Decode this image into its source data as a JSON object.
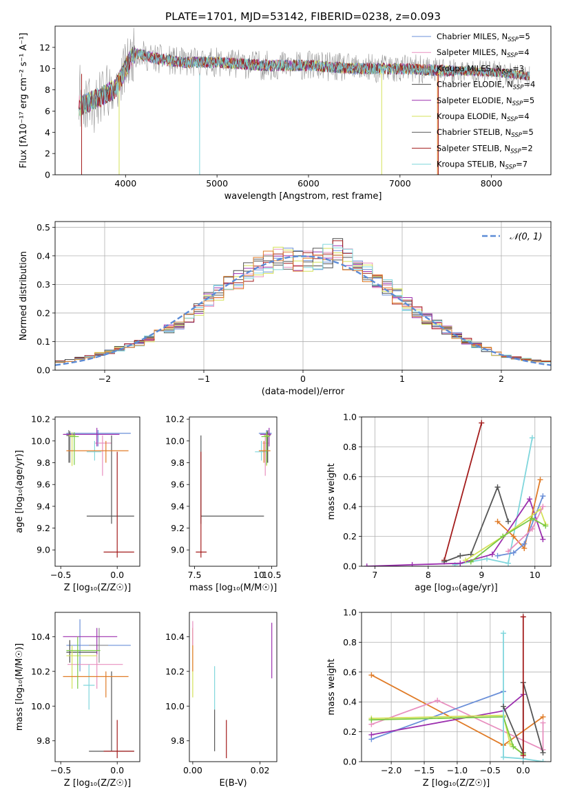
{
  "figure": {
    "title": "PLATE=1701, MJD=53142, FIBERID=0238, z=0.093"
  },
  "colors": {
    "Chabrier MILES": "#6a8fd8",
    "Salpeter MILES": "#e88fbf",
    "Kroupa MILES": "#8c8c8c",
    "Chabrier ELODIE": "#4a4a4a",
    "Salpeter ELODIE": "#9b2fae",
    "Kroupa ELODIE": "#d4e157",
    "Chabrier STELIB": "#555555",
    "Salpeter STELIB": "#a31b1b",
    "Kroupa STELIB": "#7fd6dc",
    "orange": "#e07b27",
    "green": "#7ac943",
    "gaussian": "#5b8bd6"
  },
  "chart_data": [
    {
      "panel": "spectrum",
      "type": "line",
      "xlabel": "wavelength [Angstrom, rest frame]",
      "ylabel": "Flux [fλ10⁻¹⁷ erg cm⁻² s⁻¹ A⁻¹]",
      "xlim": [
        3230,
        8650
      ],
      "ylim": [
        0,
        14
      ],
      "xticks": [
        4000,
        5000,
        6000,
        7000,
        8000
      ],
      "yticks": [
        0,
        2,
        4,
        6,
        8,
        10,
        12
      ],
      "grid": false,
      "legend": "top-right",
      "legend_entries": [
        {
          "label": "Chabrier MILES, N",
          "sub": "SSP",
          "tail": "=5"
        },
        {
          "label": "Salpeter MILES, N",
          "sub": "SSP",
          "tail": "=4"
        },
        {
          "label": "Kroupa MILES, N",
          "sub": "SSP",
          "tail": "=3"
        },
        {
          "label": "Chabrier ELODIE, N",
          "sub": "SSP",
          "tail": "=4"
        },
        {
          "label": "Salpeter ELODIE, N",
          "sub": "SSP",
          "tail": "=5"
        },
        {
          "label": "Kroupa ELODIE, N",
          "sub": "SSP",
          "tail": "=4"
        },
        {
          "label": "Chabrier STELIB, N",
          "sub": "SSP",
          "tail": "=5"
        },
        {
          "label": "Salpeter STELIB, N",
          "sub": "SSP",
          "tail": "=2"
        },
        {
          "label": "Kroupa STELIB, N",
          "sub": "SSP",
          "tail": "=7"
        }
      ],
      "continuum": {
        "x": [
          3500,
          3700,
          3900,
          4000,
          4100,
          4300,
          4600,
          5000,
          5500,
          6000,
          6500,
          7000,
          7500,
          8000,
          8400
        ],
        "y": [
          6.5,
          7.2,
          8.2,
          10.0,
          11.5,
          11.0,
          10.6,
          10.6,
          10.3,
          10.3,
          10.0,
          10.0,
          9.8,
          9.7,
          9.3
        ]
      }
    },
    {
      "panel": "residuals",
      "type": "line",
      "xlabel": "(data-model)/error",
      "ylabel": "Normed distribution",
      "xlim": [
        -2.5,
        2.5
      ],
      "ylim": [
        0,
        0.52
      ],
      "xticks": [
        -2,
        -1,
        0,
        1,
        2
      ],
      "yticks": [
        0.0,
        0.1,
        0.2,
        0.3,
        0.4,
        0.5
      ],
      "grid": true,
      "legend": "top-right",
      "legend_entries": [
        "𝒩(0, 1)"
      ],
      "histogram_profile": {
        "x": [
          -2.4,
          -2.0,
          -1.6,
          -1.2,
          -0.8,
          -0.4,
          -0.2,
          0.0,
          0.2,
          0.35,
          0.5,
          0.8,
          1.2,
          1.6,
          2.0,
          2.4
        ],
        "y": [
          0.03,
          0.06,
          0.1,
          0.17,
          0.29,
          0.37,
          0.4,
          0.38,
          0.39,
          0.42,
          0.38,
          0.3,
          0.19,
          0.11,
          0.05,
          0.03
        ]
      }
    },
    {
      "panel": "age_vs_Z",
      "type": "scatter",
      "xlabel": "Z [log₁₀(Z/Z☉)]",
      "ylabel": "age [log₁₀(age/yr)]",
      "xlim": [
        -0.55,
        0.2
      ],
      "ylim": [
        8.85,
        10.22
      ],
      "xticks": [
        -0.5,
        0.0
      ],
      "yticks": [
        9.0,
        9.2,
        9.4,
        9.6,
        9.8,
        10.0,
        10.2
      ],
      "points": [
        {
          "s": "Chabrier MILES",
          "x": -0.17,
          "y": 10.07,
          "xe": [
            -0.45,
            0.12
          ],
          "ye": [
            9.95,
            10.1
          ]
        },
        {
          "s": "Salpeter MILES",
          "x": -0.13,
          "y": 9.98,
          "xe": [
            -0.2,
            -0.05
          ],
          "ye": [
            9.68,
            10.05
          ]
        },
        {
          "s": "Kroupa MILES",
          "x": -0.43,
          "y": 10.06,
          "xe": [
            -0.47,
            -0.4
          ],
          "ye": [
            9.8,
            10.1
          ]
        },
        {
          "s": "Chabrier ELODIE",
          "x": -0.42,
          "y": 10.05,
          "xe": [
            -0.45,
            -0.38
          ],
          "ye": [
            9.8,
            10.09
          ]
        },
        {
          "s": "Salpeter ELODIE",
          "x": -0.18,
          "y": 10.06,
          "xe": [
            -0.48,
            0.02
          ],
          "ye": [
            9.95,
            10.12
          ]
        },
        {
          "s": "Kroupa ELODIE",
          "x": -0.4,
          "y": 10.05,
          "xe": [
            -0.43,
            -0.37
          ],
          "ye": [
            9.77,
            10.08
          ]
        },
        {
          "s": "Chabrier STELIB",
          "x": -0.05,
          "y": 9.31,
          "xe": [
            -0.27,
            0.15
          ],
          "ye": [
            9.24,
            10.05
          ]
        },
        {
          "s": "Salpeter STELIB",
          "x": 0.0,
          "y": 8.98,
          "xe": [
            -0.12,
            0.15
          ],
          "ye": [
            8.93,
            9.9
          ]
        },
        {
          "s": "Kroupa STELIB",
          "x": -0.2,
          "y": 9.9,
          "xe": [
            -0.27,
            -0.14
          ],
          "ye": [
            9.82,
            10.0
          ]
        },
        {
          "s": "orange",
          "x": -0.1,
          "y": 9.91,
          "xe": [
            -0.45,
            0.1
          ],
          "ye": [
            9.8,
            10.0
          ]
        },
        {
          "s": "green",
          "x": -0.38,
          "y": 10.04,
          "xe": [
            -0.42,
            -0.34
          ],
          "ye": [
            9.78,
            10.08
          ]
        }
      ]
    },
    {
      "panel": "age_vs_mass",
      "type": "scatter",
      "xlabel": "mass [log₁₀(M/M☉)]",
      "ylabel": "",
      "xlim": [
        7.3,
        10.7
      ],
      "ylim": [
        8.85,
        10.22
      ],
      "xticks": [
        7.5,
        10.0,
        10.5
      ],
      "yticks": [
        9.0,
        9.2,
        9.4,
        9.6,
        9.8,
        10.0,
        10.2
      ],
      "points": [
        {
          "s": "Chabrier MILES",
          "x": 10.3,
          "y": 10.07,
          "xe": [
            10.0,
            10.5
          ],
          "ye": [
            9.95,
            10.1
          ]
        },
        {
          "s": "Salpeter MILES",
          "x": 10.25,
          "y": 9.98,
          "xe": [
            10.15,
            10.4
          ],
          "ye": [
            9.68,
            10.05
          ]
        },
        {
          "s": "Kroupa MILES",
          "x": 10.35,
          "y": 10.06,
          "xe": [
            10.25,
            10.45
          ],
          "ye": [
            9.8,
            10.1
          ]
        },
        {
          "s": "Chabrier ELODIE",
          "x": 10.33,
          "y": 10.05,
          "xe": [
            10.2,
            10.45
          ],
          "ye": [
            9.8,
            10.09
          ]
        },
        {
          "s": "Salpeter ELODIE",
          "x": 10.4,
          "y": 10.06,
          "xe": [
            10.05,
            10.48
          ],
          "ye": [
            9.95,
            10.12
          ]
        },
        {
          "s": "Kroupa ELODIE",
          "x": 10.3,
          "y": 10.05,
          "xe": [
            10.2,
            10.4
          ],
          "ye": [
            9.77,
            10.08
          ]
        },
        {
          "s": "Chabrier STELIB",
          "x": 7.75,
          "y": 9.31,
          "xe": [
            7.75,
            10.2
          ],
          "ye": [
            9.24,
            10.05
          ]
        },
        {
          "s": "Salpeter STELIB",
          "x": 7.75,
          "y": 8.98,
          "xe": [
            7.55,
            7.97
          ],
          "ye": [
            8.93,
            9.9
          ]
        },
        {
          "s": "Kroupa STELIB",
          "x": 10.1,
          "y": 9.9,
          "xe": [
            9.85,
            10.3
          ],
          "ye": [
            9.82,
            10.0
          ]
        },
        {
          "s": "orange",
          "x": 10.2,
          "y": 9.91,
          "xe": [
            10.0,
            10.45
          ],
          "ye": [
            9.8,
            10.0
          ]
        },
        {
          "s": "green",
          "x": 10.3,
          "y": 10.04,
          "xe": [
            10.1,
            10.42
          ],
          "ye": [
            9.78,
            10.08
          ]
        }
      ]
    },
    {
      "panel": "weight_vs_age",
      "type": "line",
      "xlabel": "age  [log₁₀(age/yr)]",
      "ylabel": "mass weight",
      "xlim": [
        6.75,
        10.3
      ],
      "ylim": [
        0,
        1.0
      ],
      "xticks": [
        7,
        8,
        9,
        10
      ],
      "yticks": [
        0.0,
        0.2,
        0.4,
        0.6,
        0.8,
        1.0
      ],
      "grid": true,
      "series": [
        {
          "s": "Salpeter STELIB",
          "x": [
            8.3,
            9.0
          ],
          "y": [
            0.04,
            0.96
          ]
        },
        {
          "s": "Chabrier STELIB",
          "x": [
            8.3,
            8.6,
            8.8,
            9.3,
            9.5
          ],
          "y": [
            0.03,
            0.07,
            0.08,
            0.53,
            0.3
          ]
        },
        {
          "s": "Kroupa STELIB",
          "x": [
            8.5,
            8.8,
            9.1,
            9.5,
            9.95
          ],
          "y": [
            0.01,
            0.03,
            0.05,
            0.02,
            0.86
          ]
        },
        {
          "s": "Salpeter ELODIE",
          "x": [
            6.85,
            7.7,
            8.6,
            9.2,
            9.9,
            10.15
          ],
          "y": [
            0.0,
            0.01,
            0.02,
            0.08,
            0.45,
            0.18
          ]
        },
        {
          "s": "orange",
          "x": [
            9.3,
            9.6,
            9.8,
            10.1
          ],
          "y": [
            0.3,
            0.2,
            0.12,
            0.58
          ]
        },
        {
          "s": "Chabrier MILES",
          "x": [
            9.3,
            9.6,
            9.8,
            10.15
          ],
          "y": [
            0.07,
            0.09,
            0.15,
            0.47
          ]
        },
        {
          "s": "Kroupa ELODIE",
          "x": [
            8.7,
            9.4,
            10.1,
            10.2
          ],
          "y": [
            0.04,
            0.2,
            0.38,
            0.28
          ]
        },
        {
          "s": "Salpeter MILES",
          "x": [
            9.5,
            9.95,
            10.15
          ],
          "y": [
            0.1,
            0.25,
            0.4
          ]
        },
        {
          "s": "green",
          "x": [
            8.8,
            9.4,
            9.95,
            10.2
          ],
          "y": [
            0.03,
            0.2,
            0.32,
            0.27
          ]
        }
      ]
    },
    {
      "panel": "mass_vs_Z",
      "type": "scatter",
      "xlabel": "Z [log₁₀(Z/Z☉)]",
      "ylabel": "mass [log₁₀(M/M☉)]",
      "xlim": [
        -0.55,
        0.2
      ],
      "ylim": [
        9.68,
        10.54
      ],
      "xticks": [
        -0.5,
        0.0
      ],
      "yticks": [
        9.8,
        10.0,
        10.2,
        10.4
      ],
      "points": [
        {
          "s": "Chabrier MILES",
          "x": -0.33,
          "y": 10.35,
          "xe": [
            -0.45,
            0.12
          ],
          "ye": [
            10.2,
            10.5
          ]
        },
        {
          "s": "Salpeter MILES",
          "x": -0.18,
          "y": 10.24,
          "xe": [
            -0.44,
            0.05
          ],
          "ye": [
            10.1,
            10.35
          ]
        },
        {
          "s": "Kroupa MILES",
          "x": -0.16,
          "y": 10.35,
          "xe": [
            -0.25,
            -0.08
          ],
          "ye": [
            10.25,
            10.45
          ]
        },
        {
          "s": "Chabrier ELODIE",
          "x": -0.42,
          "y": 10.31,
          "xe": [
            -0.45,
            -0.18
          ],
          "ye": [
            10.25,
            10.38
          ]
        },
        {
          "s": "Salpeter ELODIE",
          "x": -0.18,
          "y": 10.4,
          "xe": [
            -0.48,
            0.0
          ],
          "ye": [
            10.3,
            10.45
          ]
        },
        {
          "s": "Kroupa ELODIE",
          "x": -0.4,
          "y": 10.29,
          "xe": [
            -0.45,
            -0.18
          ],
          "ye": [
            10.1,
            10.35
          ]
        },
        {
          "s": "Chabrier STELIB",
          "x": -0.05,
          "y": 9.74,
          "xe": [
            -0.25,
            0.15
          ],
          "ye": [
            9.74,
            10.2
          ]
        },
        {
          "s": "Salpeter STELIB",
          "x": 0.0,
          "y": 9.74,
          "xe": [
            -0.12,
            0.15
          ],
          "ye": [
            9.7,
            9.92
          ]
        },
        {
          "s": "Kroupa STELIB",
          "x": -0.25,
          "y": 10.12,
          "xe": [
            -0.3,
            -0.2
          ],
          "ye": [
            9.98,
            10.24
          ]
        },
        {
          "s": "orange",
          "x": -0.1,
          "y": 10.17,
          "xe": [
            -0.48,
            0.1
          ],
          "ye": [
            10.05,
            10.2
          ]
        },
        {
          "s": "green",
          "x": -0.35,
          "y": 10.32,
          "xe": [
            -0.45,
            -0.15
          ],
          "ye": [
            10.1,
            10.4
          ]
        }
      ]
    },
    {
      "panel": "mass_vs_EBV",
      "type": "scatter",
      "xlabel": "E(B-V)",
      "ylabel": "",
      "xlim": [
        -0.001,
        0.025
      ],
      "ylim": [
        9.68,
        10.54
      ],
      "xticks": [
        0.0,
        0.02
      ],
      "xtick_labels": [
        "0.00",
        "0.02"
      ],
      "yticks": [
        9.8,
        10.0,
        10.2,
        10.4
      ],
      "points": [
        {
          "s": "Kroupa ELODIE",
          "x": 0.0,
          "y": 10.3,
          "ye": [
            10.05,
            10.45
          ]
        },
        {
          "s": "orange",
          "x": 0.0,
          "y": 10.35,
          "ye": [
            10.2,
            10.45
          ]
        },
        {
          "s": "Salpeter MILES",
          "x": 0.0,
          "y": 10.42,
          "ye": [
            10.35,
            10.49
          ]
        },
        {
          "s": "Kroupa STELIB",
          "x": 0.0065,
          "y": 10.1,
          "ye": [
            9.98,
            10.23
          ]
        },
        {
          "s": "Chabrier STELIB",
          "x": 0.0065,
          "y": 9.85,
          "ye": [
            9.74,
            9.98
          ]
        },
        {
          "s": "Salpeter STELIB",
          "x": 0.01,
          "y": 9.8,
          "ye": [
            9.7,
            9.92
          ]
        },
        {
          "s": "Salpeter ELODIE",
          "x": 0.0235,
          "y": 10.35,
          "ye": [
            10.16,
            10.48
          ]
        }
      ]
    },
    {
      "panel": "weight_vs_Z",
      "type": "line",
      "xlabel": "Z [log₁₀(Z/Z☉)]",
      "ylabel": "mass weight",
      "xlim": [
        -2.45,
        0.42
      ],
      "ylim": [
        0,
        1.0
      ],
      "xticks": [
        -2.0,
        -1.5,
        -1.0,
        -0.5,
        0.0
      ],
      "yticks": [
        0.0,
        0.2,
        0.4,
        0.6,
        0.8,
        1.0
      ],
      "grid": true,
      "series": [
        {
          "s": "orange",
          "x": [
            -2.3,
            -0.3,
            0.3
          ],
          "y": [
            0.58,
            0.11,
            0.3
          ]
        },
        {
          "s": "Salpeter MILES",
          "x": [
            -2.3,
            -1.3,
            0.3,
            0.3
          ],
          "y": [
            0.25,
            0.41,
            0.08,
            0.26
          ]
        },
        {
          "s": "Chabrier MILES",
          "x": [
            -2.3,
            -0.3
          ],
          "y": [
            0.15,
            0.47
          ]
        },
        {
          "s": "Salpeter ELODIE",
          "x": [
            -2.3,
            -0.3,
            0.0
          ],
          "y": [
            0.18,
            0.34,
            0.45
          ]
        },
        {
          "s": "Kroupa ELODIE",
          "x": [
            -2.3,
            -0.3,
            -0.2,
            0.0
          ],
          "y": [
            0.29,
            0.31,
            0.12,
            0.05
          ]
        },
        {
          "s": "green",
          "x": [
            -2.3,
            -0.3,
            -0.15,
            0.0
          ],
          "y": [
            0.28,
            0.3,
            0.1,
            0.05
          ]
        },
        {
          "s": "Kroupa STELIB",
          "x": [
            -0.3,
            -0.3,
            0.0,
            0.3
          ],
          "y": [
            0.86,
            0.03,
            0.02,
            0.0
          ]
        },
        {
          "s": "Chabrier STELIB",
          "x": [
            -0.3,
            0.0,
            0.0,
            0.3
          ],
          "y": [
            0.37,
            0.06,
            0.53,
            0.06
          ]
        },
        {
          "s": "Salpeter STELIB",
          "x": [
            0.0,
            0.0
          ],
          "y": [
            0.04,
            0.97
          ]
        }
      ]
    }
  ]
}
